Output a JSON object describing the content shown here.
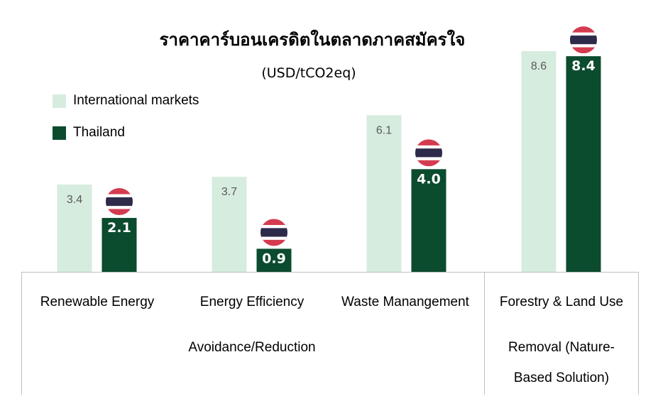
{
  "colors": {
    "international": "#d6ecdf",
    "thailand": "#0b4b2e",
    "axis": "#bfbfbf",
    "flag_red": "#d43b4f",
    "flag_blue": "#2d2a4a",
    "flag_white": "#ffffff"
  },
  "chart_data": {
    "type": "bar",
    "title": "ราคาคาร์บอนเครดิตในตลาดภาคสมัครใจ",
    "subtitle": "(USD/tCO2eq)",
    "categories": [
      "Renewable Energy",
      "Energy Efficiency",
      "Waste Manangement",
      "Forestry & Land Use"
    ],
    "groups": [
      {
        "label": "Avoidance/Reduction",
        "categories": [
          0,
          1,
          2
        ]
      },
      {
        "label_lines": [
          "Removal (Nature-",
          "Based Solution)"
        ],
        "categories": [
          3
        ]
      }
    ],
    "series": [
      {
        "name": "International markets",
        "values": [
          3.4,
          3.7,
          6.1,
          8.6
        ],
        "labels": [
          "3.4",
          "3.7",
          "6.1",
          "8.6"
        ]
      },
      {
        "name": "Thailand",
        "values": [
          2.1,
          0.9,
          4.0,
          8.4
        ],
        "labels": [
          "2.1",
          "0.9",
          "4.0",
          "8.4"
        ],
        "marker_icon": "thailand-flag-icon"
      }
    ],
    "ylim": [
      0,
      10
    ],
    "grid": false,
    "legend_position": "top-left"
  }
}
